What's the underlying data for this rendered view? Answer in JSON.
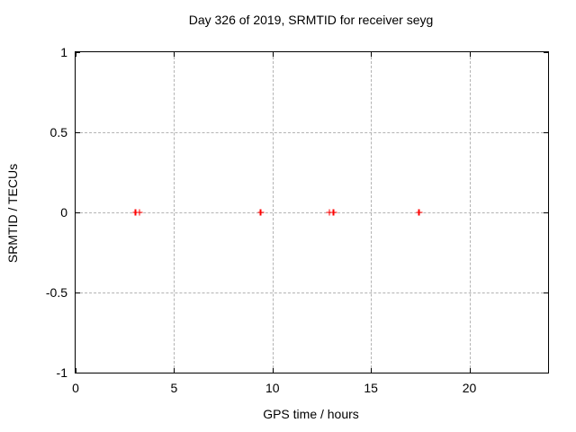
{
  "window": {
    "background": "#ffffff"
  },
  "chart_data": {
    "type": "scatter",
    "title": "Day 326 of 2019, SRMTID for receiver seyg",
    "xlabel": "GPS time / hours",
    "ylabel": "SRMTID / TECUs",
    "xlim": [
      0,
      24
    ],
    "ylim": [
      -1,
      1
    ],
    "x_ticks": [
      {
        "value": 0,
        "label": "0"
      },
      {
        "value": 5,
        "label": "5"
      },
      {
        "value": 10,
        "label": "10"
      },
      {
        "value": 15,
        "label": "15"
      },
      {
        "value": 20,
        "label": "20"
      }
    ],
    "y_ticks": [
      {
        "value": 1,
        "label": "1"
      },
      {
        "value": 0.5,
        "label": "0.5"
      },
      {
        "value": 0,
        "label": "0"
      },
      {
        "value": -0.5,
        "label": "-0.5"
      },
      {
        "value": -1,
        "label": "-1"
      }
    ],
    "grid": true,
    "legend": "none",
    "marker": "plus",
    "colors": {
      "marker": "#ff0000",
      "grid": "#b3b3b3",
      "axis": "#000000",
      "text": "#000000"
    },
    "series": [
      {
        "name": "SRMTID",
        "x": [
          3.05,
          3.25,
          9.4,
          12.9,
          13.1,
          17.45
        ],
        "y": [
          0,
          0,
          0,
          0,
          0,
          0
        ]
      }
    ]
  }
}
